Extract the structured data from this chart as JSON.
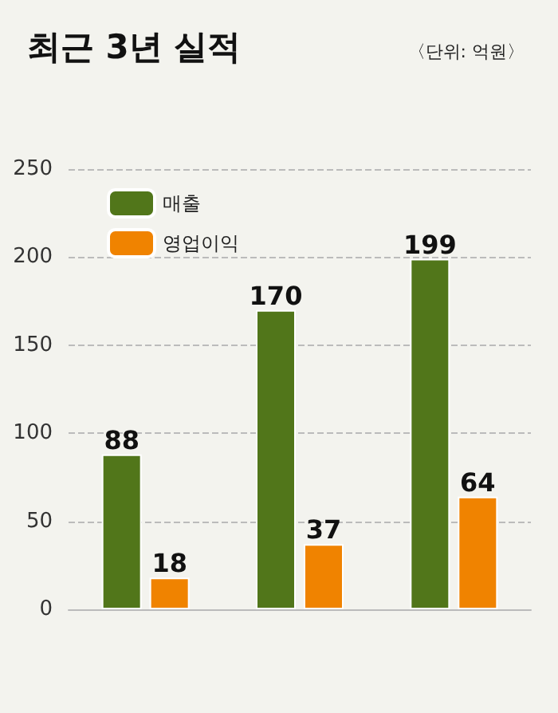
{
  "chart_data": {
    "type": "bar",
    "title": "최근 3년 실적",
    "subtitle": "〈단위: 억원〉",
    "categories": [
      null,
      null,
      null
    ],
    "series": [
      {
        "name": "매출",
        "color": "#51761a",
        "values": [
          88,
          170,
          199
        ]
      },
      {
        "name": "영업이익",
        "color": "#f08300",
        "values": [
          18,
          37,
          64
        ]
      }
    ],
    "ylim": [
      0,
      250
    ],
    "yticks": [
      0,
      50,
      100,
      150,
      200,
      250
    ],
    "grid": "y",
    "legend": "top left",
    "data_labels": true
  }
}
